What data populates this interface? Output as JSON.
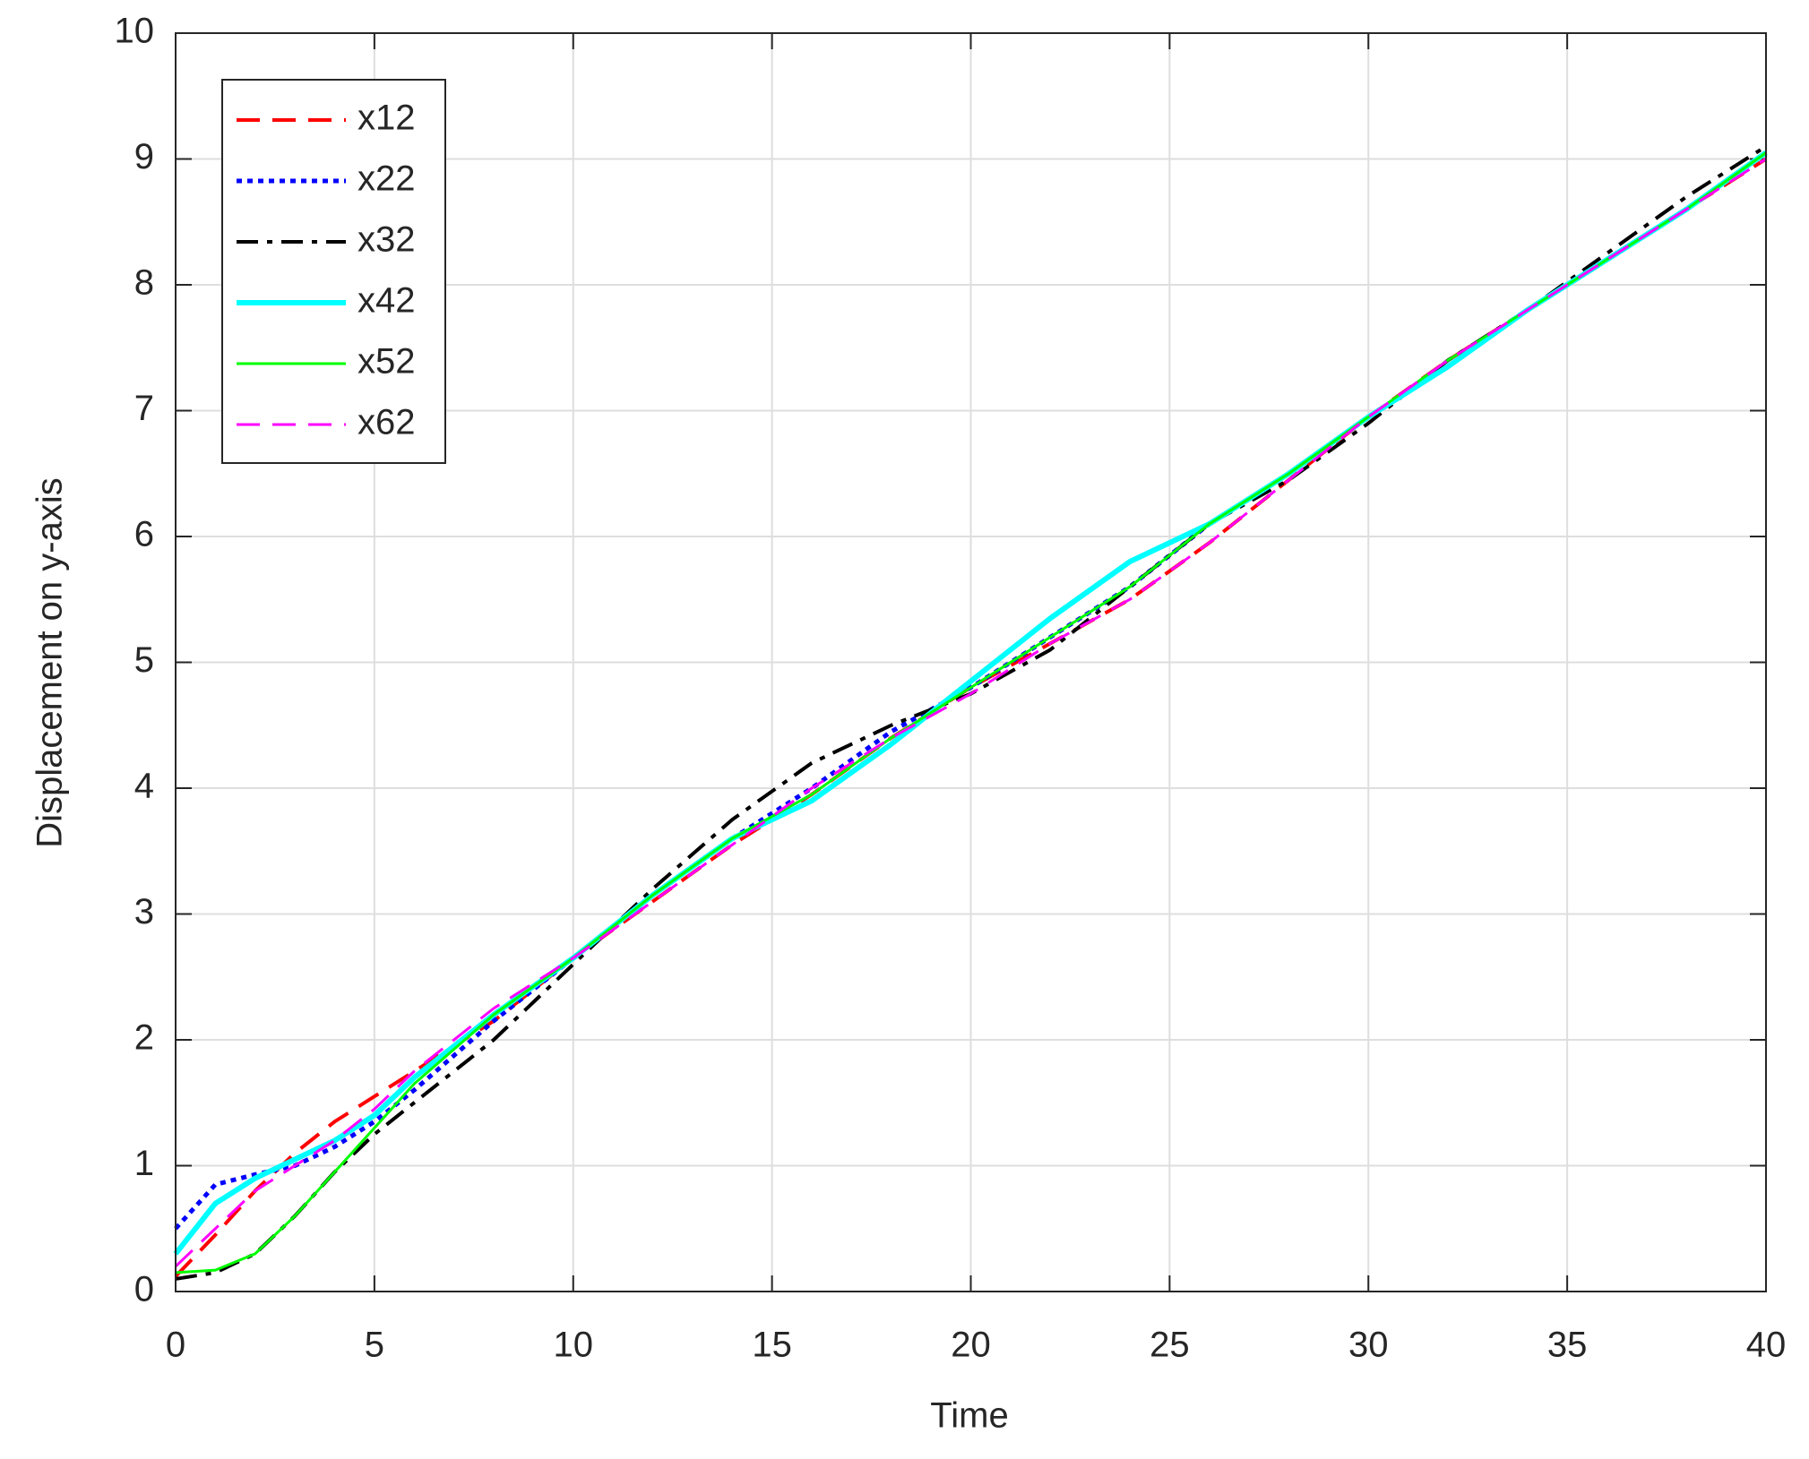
{
  "chart_data": {
    "type": "line",
    "xlabel": "Time",
    "ylabel": "Displacement on y-axis",
    "x": [
      0,
      1,
      2,
      3,
      4,
      5,
      6,
      8,
      10,
      12,
      14,
      16,
      18,
      20,
      22,
      24,
      26,
      28,
      30,
      32,
      34,
      36,
      38,
      40
    ],
    "series": [
      {
        "name": "x12",
        "color": "#ff0000",
        "linestyle": "--",
        "linewidth": 4,
        "values": [
          0.12,
          0.45,
          0.8,
          1.1,
          1.35,
          1.55,
          1.75,
          2.15,
          2.65,
          3.1,
          3.55,
          3.95,
          4.4,
          4.8,
          5.15,
          5.5,
          5.95,
          6.45,
          6.95,
          7.4,
          7.8,
          8.2,
          8.6,
          9.0
        ]
      },
      {
        "name": "x22",
        "color": "#0000ff",
        "linestyle": ":",
        "linewidth": 5,
        "values": [
          0.5,
          0.85,
          0.93,
          1.0,
          1.15,
          1.35,
          1.6,
          2.15,
          2.65,
          3.15,
          3.6,
          4.0,
          4.45,
          4.8,
          5.2,
          5.6,
          6.1,
          6.5,
          6.95,
          7.35,
          7.8,
          8.2,
          8.6,
          9.05
        ]
      },
      {
        "name": "x32",
        "color": "#000000",
        "linestyle": "-.",
        "linewidth": 4,
        "values": [
          0.1,
          0.15,
          0.3,
          0.6,
          0.95,
          1.25,
          1.5,
          2.0,
          2.6,
          3.2,
          3.75,
          4.2,
          4.5,
          4.75,
          5.1,
          5.6,
          6.1,
          6.45,
          6.9,
          7.4,
          7.8,
          8.25,
          8.7,
          9.1
        ]
      },
      {
        "name": "x42",
        "color": "#00ffff",
        "linestyle": "-",
        "linewidth": 6,
        "values": [
          0.3,
          0.7,
          0.9,
          1.05,
          1.2,
          1.4,
          1.7,
          2.2,
          2.65,
          3.15,
          3.6,
          3.9,
          4.35,
          4.85,
          5.35,
          5.8,
          6.1,
          6.5,
          6.95,
          7.35,
          7.8,
          8.2,
          8.6,
          9.05
        ]
      },
      {
        "name": "x52",
        "color": "#00ff00",
        "linestyle": "-",
        "linewidth": 3,
        "values": [
          0.15,
          0.17,
          0.3,
          0.6,
          0.95,
          1.3,
          1.65,
          2.2,
          2.65,
          3.15,
          3.6,
          3.95,
          4.4,
          4.8,
          5.2,
          5.6,
          6.1,
          6.5,
          6.95,
          7.4,
          7.8,
          8.2,
          8.6,
          9.05
        ]
      },
      {
        "name": "x62",
        "color": "#ff00ff",
        "linestyle": "--",
        "linewidth": 3,
        "values": [
          0.2,
          0.5,
          0.8,
          1.0,
          1.2,
          1.45,
          1.75,
          2.25,
          2.65,
          3.1,
          3.55,
          4.0,
          4.4,
          4.75,
          5.15,
          5.5,
          5.95,
          6.45,
          6.95,
          7.4,
          7.8,
          8.2,
          8.6,
          9.0
        ]
      }
    ],
    "xlim": [
      0,
      40
    ],
    "xticks": [
      0,
      5,
      10,
      15,
      20,
      25,
      30,
      35,
      40
    ],
    "ylim": [
      0,
      10
    ],
    "yticks": [
      0,
      1,
      2,
      3,
      4,
      5,
      6,
      7,
      8,
      9,
      10
    ],
    "grid": true,
    "legend": "upper left"
  }
}
